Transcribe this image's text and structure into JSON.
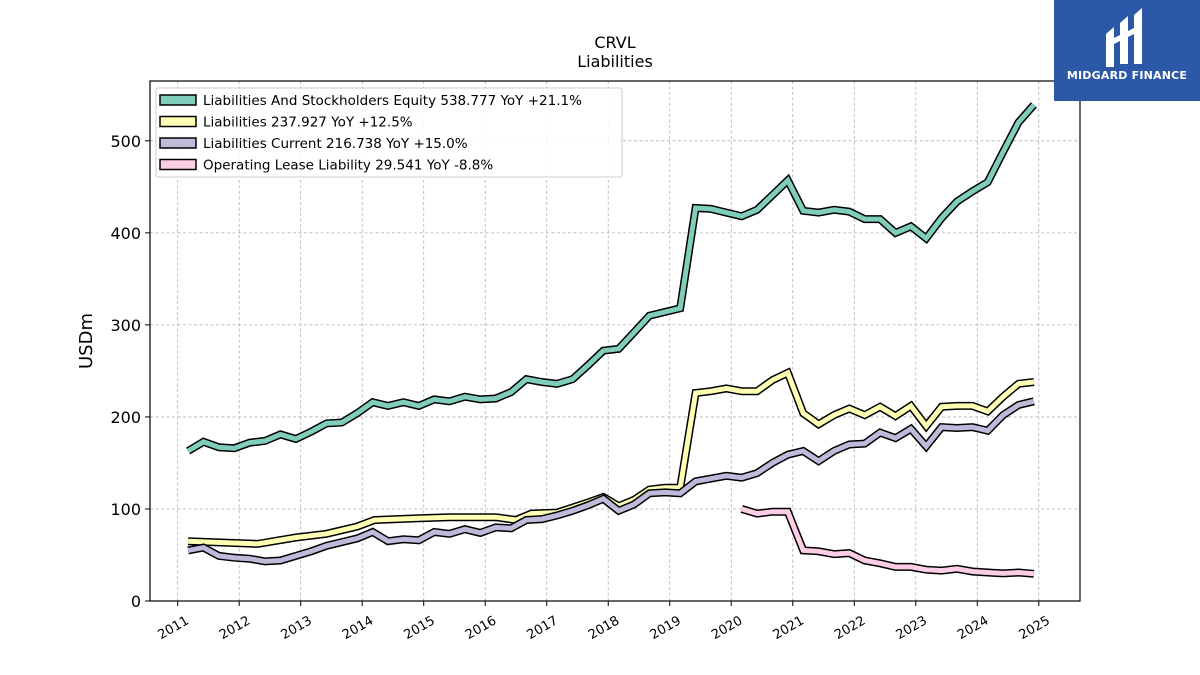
{
  "logo": {
    "text": "MIDGARD FINANCE",
    "bg": "#2b59a8",
    "mark": "mh-monogram-icon"
  },
  "chart_data": {
    "type": "line",
    "title": "CRVL",
    "subtitle": "Liabilities",
    "xlabel": "",
    "ylabel": "USDm",
    "xlim": [
      2010.55,
      2025.67
    ],
    "ylim": [
      0,
      565
    ],
    "yticks": [
      0,
      100,
      200,
      300,
      400,
      500
    ],
    "xticks": [
      2011,
      2012,
      2013,
      2014,
      2015,
      2016,
      2017,
      2018,
      2019,
      2020,
      2021,
      2022,
      2023,
      2024,
      2025
    ],
    "grid": true,
    "legend_position": "top-left",
    "series": [
      {
        "name": "Liabilities And Stockholders Equity",
        "legend_label": "Liabilities And Stockholders Equity  538.777 YoY +21.1%",
        "color": "#7fcdbb",
        "points": [
          [
            2011.17,
            163
          ],
          [
            2011.42,
            173
          ],
          [
            2011.67,
            167
          ],
          [
            2011.92,
            166
          ],
          [
            2012.17,
            172
          ],
          [
            2012.42,
            174
          ],
          [
            2012.67,
            181
          ],
          [
            2012.92,
            176
          ],
          [
            2013.17,
            184
          ],
          [
            2013.42,
            193
          ],
          [
            2013.67,
            194
          ],
          [
            2013.92,
            204
          ],
          [
            2014.17,
            216
          ],
          [
            2014.42,
            212
          ],
          [
            2014.67,
            216
          ],
          [
            2014.92,
            212
          ],
          [
            2015.17,
            219
          ],
          [
            2015.42,
            217
          ],
          [
            2015.67,
            222
          ],
          [
            2015.92,
            219
          ],
          [
            2016.17,
            220
          ],
          [
            2016.42,
            227
          ],
          [
            2016.67,
            241
          ],
          [
            2016.92,
            238
          ],
          [
            2017.17,
            236
          ],
          [
            2017.42,
            241
          ],
          [
            2017.67,
            256
          ],
          [
            2017.92,
            272
          ],
          [
            2018.17,
            274
          ],
          [
            2018.42,
            292
          ],
          [
            2018.67,
            310
          ],
          [
            2018.92,
            314
          ],
          [
            2019.17,
            318
          ],
          [
            2019.42,
            427
          ],
          [
            2019.67,
            426
          ],
          [
            2019.92,
            422
          ],
          [
            2020.17,
            418
          ],
          [
            2020.42,
            425
          ],
          [
            2020.67,
            441
          ],
          [
            2020.92,
            457
          ],
          [
            2021.17,
            424
          ],
          [
            2021.42,
            422
          ],
          [
            2021.67,
            425
          ],
          [
            2021.92,
            423
          ],
          [
            2022.17,
            415
          ],
          [
            2022.42,
            415
          ],
          [
            2022.67,
            400
          ],
          [
            2022.92,
            407
          ],
          [
            2023.17,
            394
          ],
          [
            2023.42,
            416
          ],
          [
            2023.67,
            434
          ],
          [
            2023.92,
            445
          ],
          [
            2024.17,
            455
          ],
          [
            2024.42,
            488
          ],
          [
            2024.67,
            520
          ],
          [
            2024.92,
            539
          ]
        ]
      },
      {
        "name": "Liabilities",
        "legend_label": "Liabilities  237.927 YoY +12.5%",
        "color": "#ffffb3",
        "points": [
          [
            2011.17,
            65
          ],
          [
            2011.92,
            63
          ],
          [
            2012.3,
            62
          ],
          [
            2012.92,
            69
          ],
          [
            2013.42,
            73
          ],
          [
            2013.92,
            81
          ],
          [
            2014.2,
            88
          ],
          [
            2014.92,
            90
          ],
          [
            2015.42,
            91
          ],
          [
            2015.92,
            91
          ],
          [
            2016.17,
            91
          ],
          [
            2016.5,
            88
          ],
          [
            2016.75,
            95
          ],
          [
            2017.17,
            96
          ],
          [
            2017.67,
            107
          ],
          [
            2017.92,
            113
          ],
          [
            2018.17,
            103
          ],
          [
            2018.42,
            110
          ],
          [
            2018.67,
            121
          ],
          [
            2018.92,
            123
          ],
          [
            2019.17,
            123
          ],
          [
            2019.42,
            226
          ],
          [
            2019.67,
            228
          ],
          [
            2019.92,
            231
          ],
          [
            2020.17,
            228
          ],
          [
            2020.42,
            228
          ],
          [
            2020.67,
            240
          ],
          [
            2020.92,
            248
          ],
          [
            2021.17,
            204
          ],
          [
            2021.42,
            192
          ],
          [
            2021.67,
            202
          ],
          [
            2021.92,
            209
          ],
          [
            2022.17,
            202
          ],
          [
            2022.42,
            211
          ],
          [
            2022.67,
            201
          ],
          [
            2022.92,
            212
          ],
          [
            2023.17,
            190
          ],
          [
            2023.42,
            211
          ],
          [
            2023.67,
            212
          ],
          [
            2023.92,
            212
          ],
          [
            2024.17,
            206
          ],
          [
            2024.42,
            222
          ],
          [
            2024.67,
            236
          ],
          [
            2024.92,
            238
          ]
        ]
      },
      {
        "name": "Liabilities Current",
        "legend_label": "Liabilities Current  216.738 YoY +15.0%",
        "color": "#bebada",
        "points": [
          [
            2011.17,
            55
          ],
          [
            2011.42,
            58
          ],
          [
            2011.67,
            49
          ],
          [
            2011.92,
            47
          ],
          [
            2012.17,
            46
          ],
          [
            2012.42,
            43
          ],
          [
            2012.67,
            44
          ],
          [
            2012.92,
            49
          ],
          [
            2013.17,
            54
          ],
          [
            2013.42,
            60
          ],
          [
            2013.67,
            64
          ],
          [
            2013.92,
            68
          ],
          [
            2014.17,
            75
          ],
          [
            2014.42,
            65
          ],
          [
            2014.67,
            67
          ],
          [
            2014.92,
            66
          ],
          [
            2015.17,
            75
          ],
          [
            2015.42,
            73
          ],
          [
            2015.67,
            78
          ],
          [
            2015.92,
            74
          ],
          [
            2016.17,
            80
          ],
          [
            2016.42,
            79
          ],
          [
            2016.67,
            88
          ],
          [
            2016.92,
            89
          ],
          [
            2017.17,
            93
          ],
          [
            2017.42,
            98
          ],
          [
            2017.67,
            104
          ],
          [
            2017.92,
            111
          ],
          [
            2018.17,
            98
          ],
          [
            2018.42,
            105
          ],
          [
            2018.67,
            117
          ],
          [
            2018.92,
            118
          ],
          [
            2019.17,
            117
          ],
          [
            2019.42,
            130
          ],
          [
            2019.67,
            133
          ],
          [
            2019.92,
            136
          ],
          [
            2020.17,
            134
          ],
          [
            2020.42,
            139
          ],
          [
            2020.67,
            150
          ],
          [
            2020.92,
            159
          ],
          [
            2021.17,
            163
          ],
          [
            2021.42,
            152
          ],
          [
            2021.67,
            163
          ],
          [
            2021.92,
            170
          ],
          [
            2022.17,
            171
          ],
          [
            2022.42,
            183
          ],
          [
            2022.67,
            177
          ],
          [
            2022.92,
            187
          ],
          [
            2023.17,
            168
          ],
          [
            2023.42,
            189
          ],
          [
            2023.67,
            188
          ],
          [
            2023.92,
            189
          ],
          [
            2024.17,
            185
          ],
          [
            2024.42,
            202
          ],
          [
            2024.67,
            213
          ],
          [
            2024.92,
            217
          ]
        ]
      },
      {
        "name": "Operating Lease Liability",
        "legend_label": "Operating Lease Liability  29.541 YoY -8.8%",
        "color": "#fccde5",
        "points": [
          [
            2020.17,
            100
          ],
          [
            2020.42,
            95
          ],
          [
            2020.67,
            97
          ],
          [
            2020.92,
            97
          ],
          [
            2021.17,
            55
          ],
          [
            2021.42,
            54
          ],
          [
            2021.67,
            51
          ],
          [
            2021.92,
            52
          ],
          [
            2022.17,
            44
          ],
          [
            2022.42,
            41
          ],
          [
            2022.67,
            37
          ],
          [
            2022.92,
            37
          ],
          [
            2023.17,
            34
          ],
          [
            2023.42,
            33
          ],
          [
            2023.67,
            35
          ],
          [
            2023.92,
            32
          ],
          [
            2024.17,
            31
          ],
          [
            2024.42,
            30
          ],
          [
            2024.67,
            31
          ],
          [
            2024.92,
            29.5
          ]
        ]
      }
    ]
  }
}
